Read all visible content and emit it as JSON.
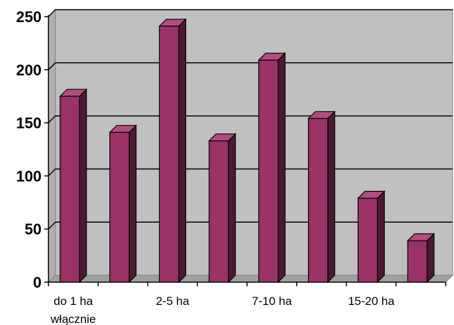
{
  "chart_data": {
    "type": "bar",
    "style": "3d-column",
    "categories": [
      "do 1 ha włącznie",
      "",
      "2-5 ha",
      "",
      "7-10 ha",
      "",
      "15-20 ha",
      ""
    ],
    "category_labels": [
      {
        "lines": [
          "do 1 ha",
          "włącznie"
        ]
      },
      {
        "lines": []
      },
      {
        "lines": [
          "2-5 ha"
        ]
      },
      {
        "lines": []
      },
      {
        "lines": [
          "7-10 ha"
        ]
      },
      {
        "lines": []
      },
      {
        "lines": [
          "15-20 ha"
        ]
      },
      {
        "lines": []
      }
    ],
    "values": [
      175,
      141,
      241,
      133,
      209,
      154,
      79,
      39
    ],
    "ylim": [
      0,
      250
    ],
    "yticks": [
      "0",
      "50",
      "100",
      "150",
      "200",
      "250"
    ],
    "ytick_values": [
      0,
      50,
      100,
      150,
      200,
      250
    ],
    "grid": true,
    "legend": "none",
    "title": "",
    "xlabel": "",
    "ylabel": "",
    "colors": {
      "bar_front": "#993366",
      "bar_side": "#4d1a33",
      "bar_top": "#b34d7f",
      "plot_back": "#c0c0c0",
      "plot_floor": "#a0a0a0",
      "gridline": "#000000"
    }
  }
}
